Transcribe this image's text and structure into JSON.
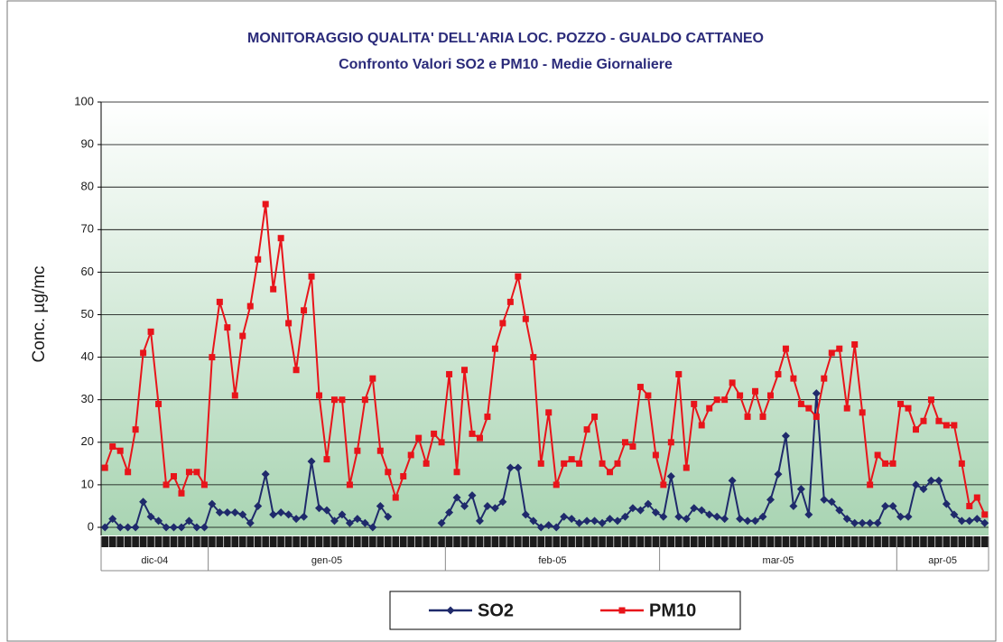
{
  "chart_data": {
    "type": "line",
    "title": "MONITORAGGIO QUALITA' DELL'ARIA LOC. POZZO - GUALDO CATTANEO",
    "subtitle": "Confronto Valori SO2 e PM10 - Medie Giornaliere",
    "y_label": "Conc.  µg/mc",
    "categories": [
      "dic-04",
      "dic-04",
      "dic-04",
      "dic-04",
      "dic-04",
      "dic-04",
      "dic-04",
      "dic-04",
      "dic-04",
      "dic-04",
      "dic-04",
      "dic-04",
      "dic-04",
      "dic-04",
      "gen-05",
      "gen-05",
      "gen-05",
      "gen-05",
      "gen-05",
      "gen-05",
      "gen-05",
      "gen-05",
      "gen-05",
      "gen-05",
      "gen-05",
      "gen-05",
      "gen-05",
      "gen-05",
      "gen-05",
      "gen-05",
      "gen-05",
      "gen-05",
      "gen-05",
      "gen-05",
      "gen-05",
      "gen-05",
      "gen-05",
      "gen-05",
      "gen-05",
      "gen-05",
      "gen-05",
      "gen-05",
      "gen-05",
      "gen-05",
      "gen-05",
      "feb-05",
      "feb-05",
      "feb-05",
      "feb-05",
      "feb-05",
      "feb-05",
      "feb-05",
      "feb-05",
      "feb-05",
      "feb-05",
      "feb-05",
      "feb-05",
      "feb-05",
      "feb-05",
      "feb-05",
      "feb-05",
      "feb-05",
      "feb-05",
      "feb-05",
      "feb-05",
      "feb-05",
      "feb-05",
      "feb-05",
      "feb-05",
      "feb-05",
      "feb-05",
      "feb-05",
      "feb-05",
      "mar-05",
      "mar-05",
      "mar-05",
      "mar-05",
      "mar-05",
      "mar-05",
      "mar-05",
      "mar-05",
      "mar-05",
      "mar-05",
      "mar-05",
      "mar-05",
      "mar-05",
      "mar-05",
      "mar-05",
      "mar-05",
      "mar-05",
      "mar-05",
      "mar-05",
      "mar-05",
      "mar-05",
      "mar-05",
      "mar-05",
      "mar-05",
      "mar-05",
      "mar-05",
      "mar-05",
      "mar-05",
      "mar-05",
      "mar-05",
      "mar-05",
      "apr-05",
      "apr-05",
      "apr-05",
      "apr-05",
      "apr-05",
      "apr-05",
      "apr-05",
      "apr-05",
      "apr-05",
      "apr-05",
      "apr-05",
      "apr-05"
    ],
    "series": [
      {
        "name": "SO2",
        "color": "#1f2a6b",
        "marker": "diamond",
        "values": [
          0,
          2,
          0,
          0,
          0,
          6,
          2.5,
          1.5,
          0,
          0,
          0,
          1.5,
          0,
          0,
          5.5,
          3.5,
          3.5,
          3.5,
          3,
          1,
          5,
          12.5,
          3,
          3.5,
          3,
          2,
          2.5,
          15.5,
          4.5,
          4,
          1.5,
          3,
          1,
          2,
          1,
          0,
          5,
          2.5,
          null,
          null,
          null,
          null,
          null,
          null,
          1,
          3.5,
          7,
          5,
          7.5,
          1.5,
          5,
          4.5,
          6,
          14,
          14,
          3,
          1.5,
          0,
          0.5,
          0,
          2.5,
          2,
          1,
          1.5,
          1.5,
          1,
          2,
          1.5,
          2.5,
          4.5,
          4,
          5.5,
          3.5,
          2.5,
          12,
          2.5,
          2,
          4.5,
          4,
          3,
          2.5,
          2,
          11,
          2,
          1.5,
          1.5,
          2.5,
          6.5,
          12.5,
          21.5,
          5,
          9,
          3,
          31.5,
          6.5,
          6,
          4,
          2,
          1,
          1,
          1,
          1,
          5,
          5,
          2.5,
          2.5,
          10,
          9,
          11,
          11,
          5.5,
          3,
          1.5,
          1.5,
          2,
          1
        ]
      },
      {
        "name": "PM10",
        "color": "#e8141a",
        "marker": "square",
        "values": [
          14,
          19,
          18,
          13,
          23,
          41,
          46,
          29,
          10,
          12,
          8,
          13,
          13,
          10,
          40,
          53,
          47,
          31,
          45,
          52,
          63,
          76,
          56,
          68,
          48,
          37,
          51,
          59,
          31,
          16,
          30,
          30,
          10,
          18,
          30,
          35,
          18,
          13,
          7,
          12,
          17,
          21,
          15,
          22,
          20,
          36,
          13,
          37,
          22,
          21,
          26,
          42,
          48,
          53,
          59,
          49,
          40,
          15,
          27,
          10,
          15,
          16,
          15,
          23,
          26,
          15,
          13,
          15,
          20,
          19,
          33,
          31,
          17,
          10,
          20,
          36,
          14,
          29,
          24,
          28,
          30,
          30,
          34,
          31,
          26,
          32,
          26,
          31,
          36,
          42,
          35,
          29,
          28,
          26,
          35,
          41,
          42,
          28,
          43,
          27,
          10,
          17,
          15,
          15,
          29,
          28,
          23,
          25,
          30,
          25,
          24,
          24,
          15,
          5,
          7,
          3
        ]
      }
    ],
    "ylim": [
      0,
      100
    ],
    "yticks": [
      0,
      10,
      20,
      30,
      40,
      50,
      60,
      70,
      80,
      90,
      100
    ],
    "grid": true
  }
}
